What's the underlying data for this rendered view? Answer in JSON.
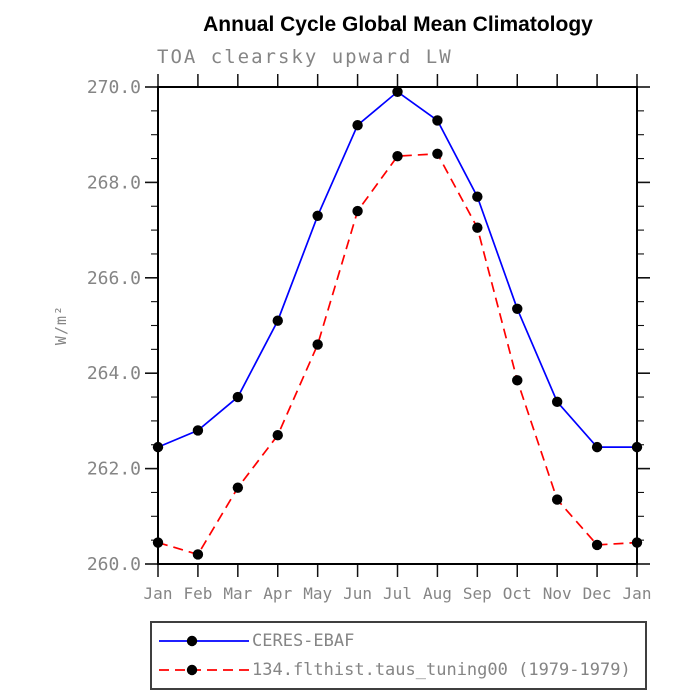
{
  "header": {
    "title": "Annual Cycle Global Mean Climatology",
    "subtitle": "TOA clearsky upward LW"
  },
  "chart_data": {
    "type": "line",
    "title": "Annual Cycle Global Mean Climatology",
    "subtitle": "TOA clearsky upward LW",
    "xlabel": "",
    "ylabel": "W/m²",
    "categories": [
      "Jan",
      "Feb",
      "Mar",
      "Apr",
      "May",
      "Jun",
      "Jul",
      "Aug",
      "Sep",
      "Oct",
      "Nov",
      "Dec",
      "Jan"
    ],
    "ylim": [
      260.0,
      270.0
    ],
    "ytick_labels": [
      "260.0",
      "262.0",
      "264.0",
      "266.0",
      "268.0",
      "270.0"
    ],
    "ytick_values": [
      260.0,
      262.0,
      264.0,
      266.0,
      268.0,
      270.0
    ],
    "ytick_minor_step": 0.5,
    "grid": false,
    "legend_position": "bottom-left-box",
    "marker": "filled-circle",
    "marker_color": "#000000",
    "series": [
      {
        "name": "CERES-EBAF",
        "color": "#0000ff",
        "line_style": "solid",
        "values": [
          262.45,
          262.8,
          263.5,
          265.1,
          267.3,
          269.2,
          269.9,
          269.3,
          267.7,
          265.35,
          263.4,
          262.45,
          262.45
        ]
      },
      {
        "name": "134.flthist.taus_tuning00 (1979-1979)",
        "color": "#ff0000",
        "line_style": "dashed",
        "values": [
          260.45,
          260.2,
          261.6,
          262.7,
          264.6,
          267.4,
          268.55,
          268.6,
          267.05,
          263.85,
          261.35,
          260.4,
          260.45
        ]
      }
    ]
  },
  "colors": {
    "frame": "#000000",
    "tick": "#111111",
    "label_gray": "#858585",
    "background": "#ffffff"
  }
}
